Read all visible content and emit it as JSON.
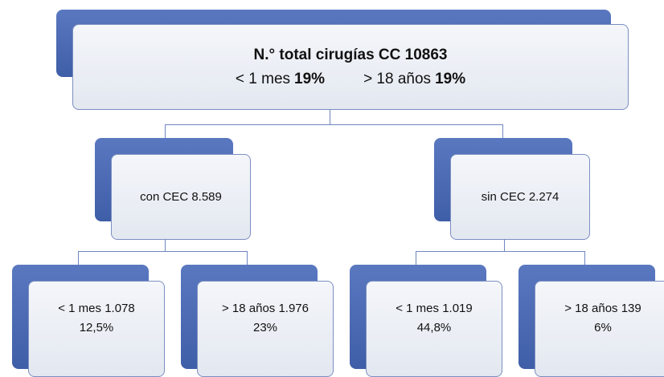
{
  "root": {
    "title": "N.° total cirugías CC 10863",
    "stats": [
      {
        "label": "< 1 mes",
        "value": "19%"
      },
      {
        "label": "> 18 años",
        "value": "19%"
      }
    ]
  },
  "nodes": [
    {
      "label": "con CEC 8.589",
      "children": [
        {
          "label": "< 1 mes 1.078",
          "percent": "12,5%"
        },
        {
          "label": "> 18 años 1.976",
          "percent": "23%"
        }
      ]
    },
    {
      "label": "sin CEC 2.274",
      "children": [
        {
          "label": "< 1 mes 1.019",
          "percent": "44,8%"
        },
        {
          "label": "> 18 años 139",
          "percent": "6%"
        }
      ]
    }
  ]
}
